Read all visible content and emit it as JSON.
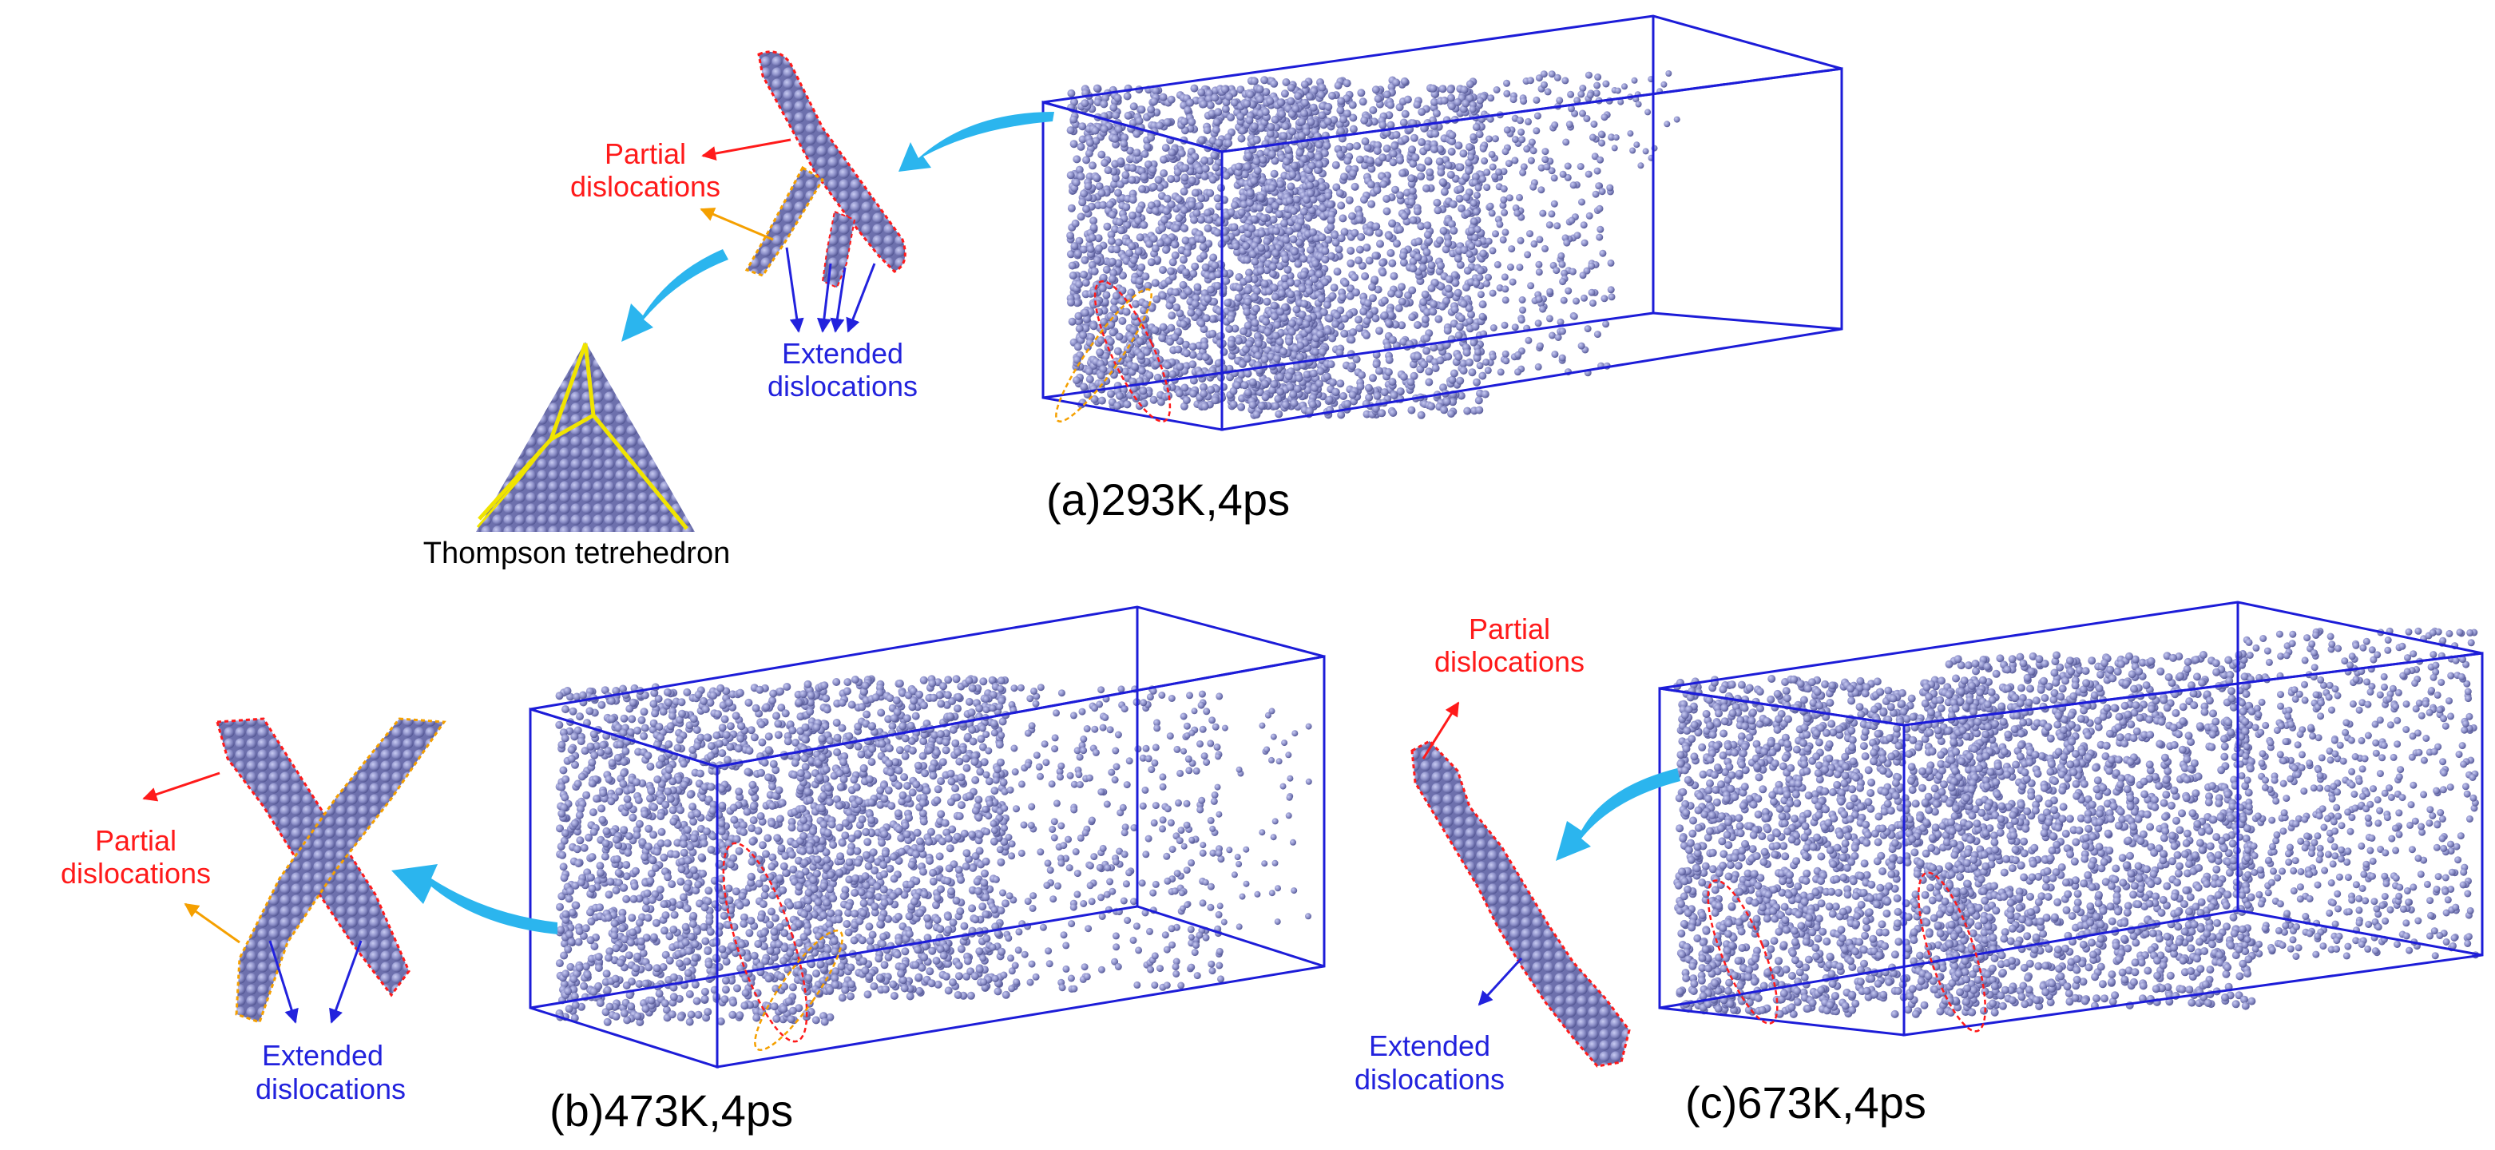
{
  "colors": {
    "atom": "#8c8fc8",
    "atom_dark": "#5a5d96",
    "box": "#1c1cd8",
    "partial": "#ff1a1a",
    "extended": "#2222dd",
    "orange_arrow": "#f5a000",
    "cyan_arrow": "#2bb5ee",
    "thompson_line": "#f0e400"
  },
  "panels": [
    {
      "id": "a",
      "caption": "(a)293K,4ps"
    },
    {
      "id": "b",
      "caption": "(b)473K,4ps"
    },
    {
      "id": "c",
      "caption": "(c)673K,4ps"
    }
  ],
  "labels": {
    "partial_line1": "Partial",
    "partial_line2": "dislocations",
    "extended_line1": "Extended",
    "extended_line2": "dislocations",
    "thompson": "Thompson tetrehedron"
  }
}
